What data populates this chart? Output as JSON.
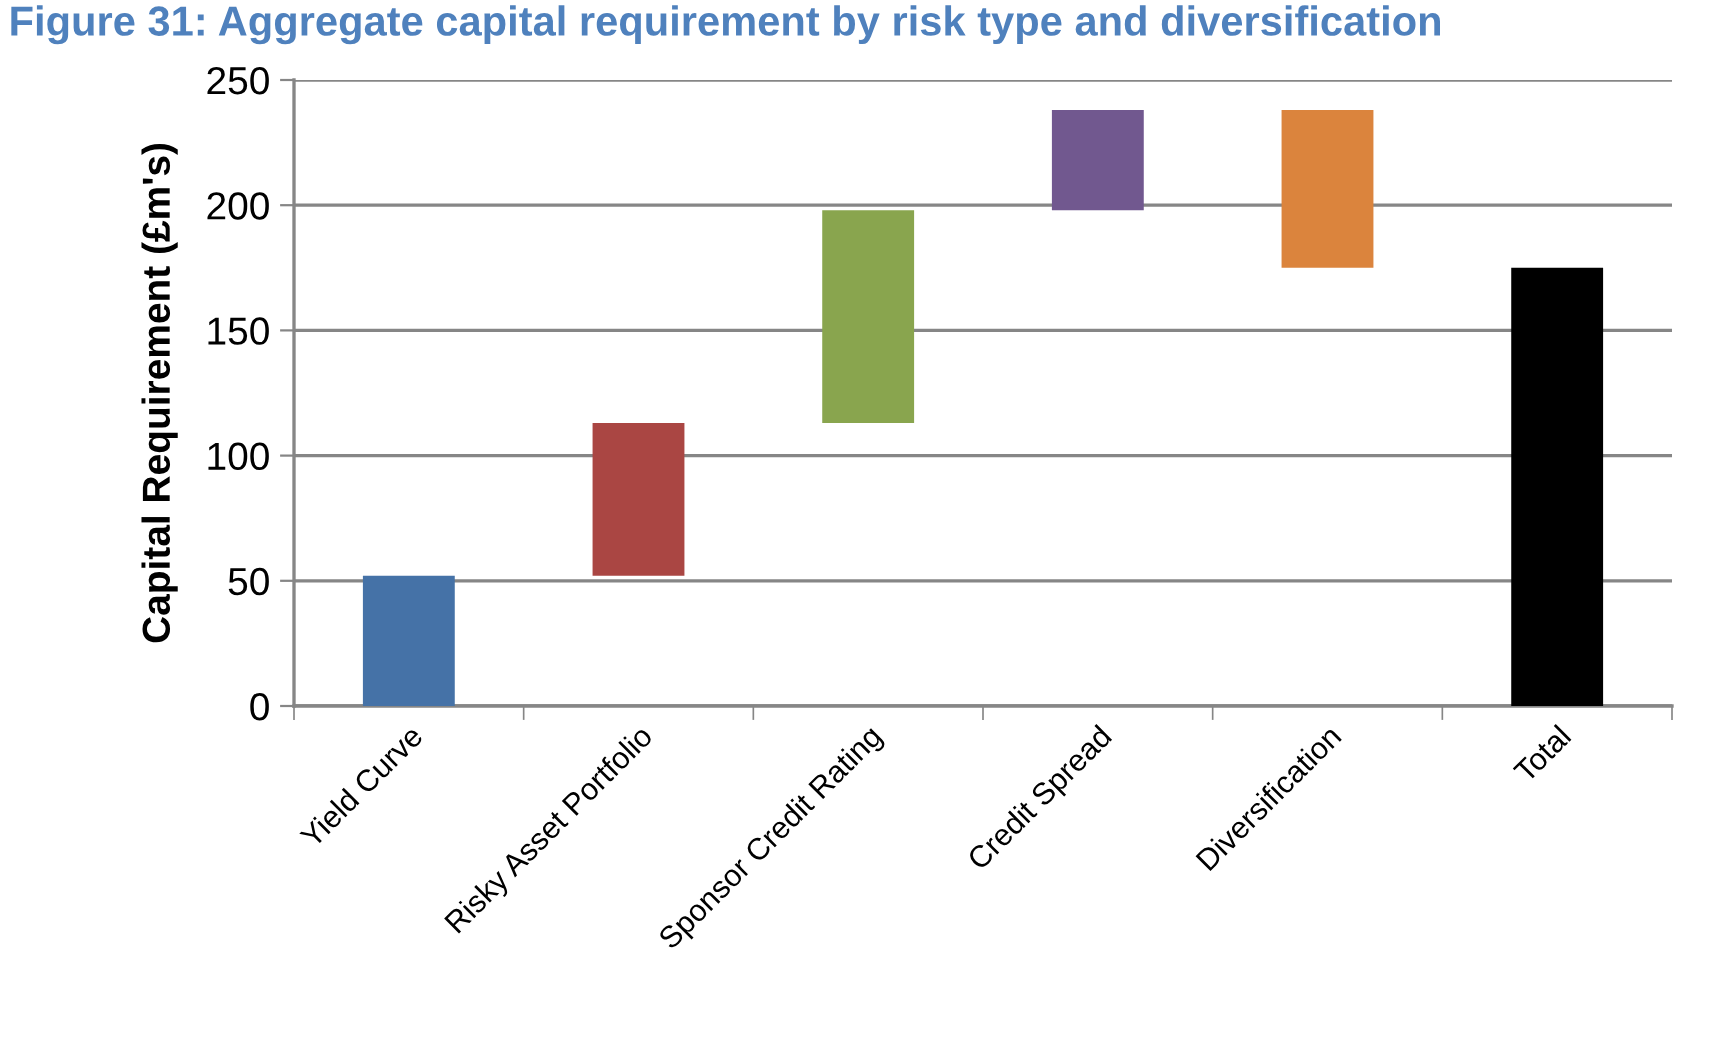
{
  "chart_data": {
    "type": "bar",
    "title": "Figure 31: Aggregate capital requirement by risk type and diversification",
    "ylabel": "Capital Requirement (£m's)",
    "categories": [
      "Yield Curve",
      "Risky Asset Portfolio",
      "Sponsor Credit Rating",
      "Credit Spread",
      "Diversification",
      "Total"
    ],
    "base": [
      0,
      52,
      113,
      198,
      238,
      0
    ],
    "values": [
      52,
      61,
      85,
      40,
      -63,
      175
    ],
    "colors": [
      "#4572a7",
      "#aa4643",
      "#89a54e",
      "#71588f",
      "#db843d",
      "#000000"
    ],
    "ylim": [
      0,
      250
    ],
    "yticks": [
      0,
      50,
      100,
      150,
      200,
      250
    ],
    "grid": "y"
  }
}
